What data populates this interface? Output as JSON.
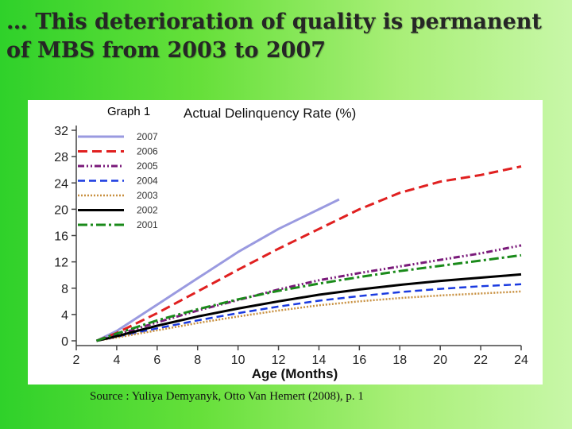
{
  "slide": {
    "title": "… This deterioration of quality is permanent of MBS from 2003 to 2007",
    "source": "Source : Yuliya Demyanyk, Otto Van Hemert (2008), p. 1"
  },
  "chart_data": {
    "type": "line",
    "graph_label": "Graph 1",
    "title": "Actual Delinquency Rate (%)",
    "xlabel": "Age (Months)",
    "ylabel": "",
    "xlim": [
      2,
      24
    ],
    "ylim": [
      0,
      32
    ],
    "xticks": [
      2,
      4,
      6,
      8,
      10,
      12,
      14,
      16,
      18,
      20,
      22,
      24
    ],
    "yticks": [
      0,
      4,
      8,
      12,
      16,
      20,
      24,
      28,
      32
    ],
    "legend_position": "top-left",
    "grid": false,
    "series": [
      {
        "name": "2007",
        "color": "#9a9ae0",
        "dash": "solid",
        "width": 3,
        "x": [
          3,
          4,
          6,
          8,
          10,
          12,
          14,
          15
        ],
        "y": [
          0,
          1.5,
          5.5,
          9.5,
          13.5,
          17,
          20,
          21.5
        ]
      },
      {
        "name": "2006",
        "color": "#e02020",
        "dash": "12,6",
        "width": 3,
        "x": [
          3,
          4,
          6,
          8,
          10,
          12,
          14,
          16,
          18,
          20,
          22,
          24
        ],
        "y": [
          0,
          1.2,
          4.2,
          7.5,
          10.8,
          14,
          17,
          20,
          22.5,
          24.2,
          25.2,
          26.5
        ]
      },
      {
        "name": "2005",
        "color": "#7a1a7a",
        "dash": "8,3,2,3,2,3",
        "width": 3,
        "x": [
          3,
          4,
          6,
          8,
          10,
          12,
          14,
          16,
          18,
          20,
          22,
          24
        ],
        "y": [
          0,
          0.9,
          2.8,
          4.6,
          6.2,
          7.8,
          9.2,
          10.3,
          11.3,
          12.3,
          13.3,
          14.5
        ]
      },
      {
        "name": "2004",
        "color": "#1a3ae0",
        "dash": "9,5",
        "width": 2.5,
        "x": [
          3,
          4,
          6,
          8,
          10,
          12,
          14,
          16,
          18,
          20,
          22,
          24
        ],
        "y": [
          0,
          0.6,
          1.9,
          3.1,
          4.2,
          5.2,
          6.1,
          6.8,
          7.4,
          7.9,
          8.3,
          8.6
        ]
      },
      {
        "name": "2003",
        "color": "#c89040",
        "dash": "2,2",
        "width": 2.5,
        "x": [
          3,
          4,
          6,
          8,
          10,
          12,
          14,
          16,
          18,
          20,
          22,
          24
        ],
        "y": [
          0,
          0.5,
          1.6,
          2.7,
          3.7,
          4.6,
          5.4,
          6,
          6.5,
          6.9,
          7.2,
          7.5
        ]
      },
      {
        "name": "2002",
        "color": "#000000",
        "dash": "solid",
        "width": 3,
        "x": [
          3,
          4,
          6,
          8,
          10,
          12,
          14,
          16,
          18,
          20,
          22,
          24
        ],
        "y": [
          0,
          0.7,
          2.3,
          3.7,
          4.9,
          6,
          7,
          7.8,
          8.5,
          9.1,
          9.6,
          10.1
        ]
      },
      {
        "name": "2001",
        "color": "#1a8a1a",
        "dash": "12,4,3,4",
        "width": 3,
        "x": [
          3,
          4,
          6,
          8,
          10,
          12,
          14,
          16,
          18,
          20,
          22,
          24
        ],
        "y": [
          0,
          1.1,
          3.1,
          4.8,
          6.3,
          7.6,
          8.7,
          9.7,
          10.6,
          11.4,
          12.2,
          13
        ]
      }
    ]
  }
}
